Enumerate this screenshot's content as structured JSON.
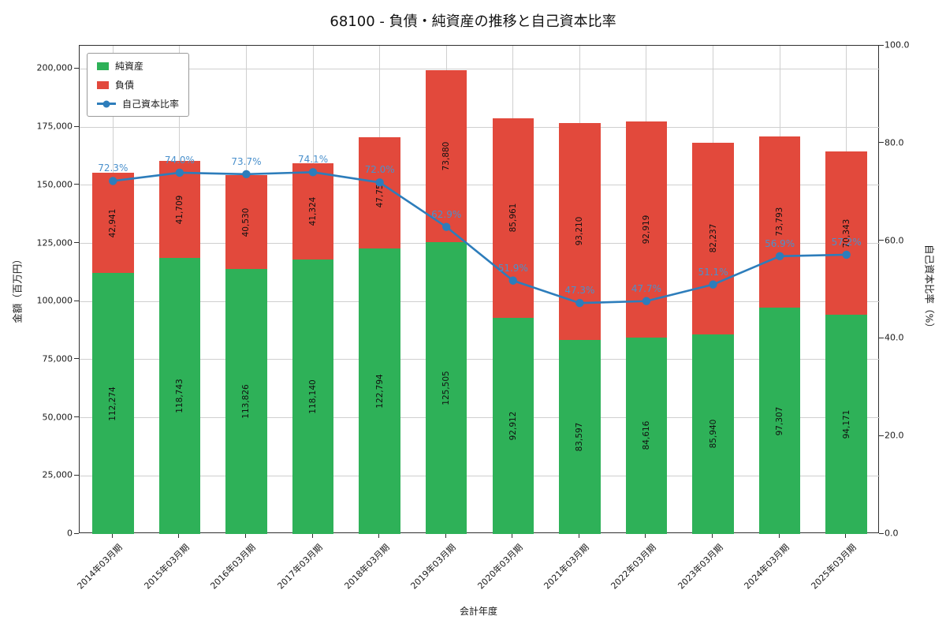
{
  "figure": {
    "title": "68100 - 負債・純資産の推移と自己資本比率"
  },
  "axes": {
    "x_label": "会計年度",
    "y_left_label": "金額（百万円）",
    "y_right_label": "自己資本比率（%）",
    "y_left_tick_values": [
      0,
      25000,
      50000,
      75000,
      100000,
      125000,
      150000,
      175000,
      200000
    ],
    "y_left_tick_labels": [
      "0",
      "25,000",
      "50,000",
      "75,000",
      "100,000",
      "125,000",
      "150,000",
      "175,000",
      "200,000"
    ],
    "y_right_tick_values": [
      0,
      20,
      40,
      60,
      80,
      100
    ],
    "y_right_tick_labels": [
      "0.0",
      "20.0",
      "40.0",
      "60.0",
      "80.0",
      "100.0"
    ]
  },
  "legend": {
    "equity": "純資産",
    "debt": "負債",
    "ratio": "自己資本比率"
  },
  "colors": {
    "equity": "#2eb158",
    "debt": "#e2493c",
    "line": "#2d7dbb",
    "ratio_label": "#4a90cc",
    "grid": "#cfcfcf"
  },
  "chart_data": {
    "type": "bar",
    "variant": "stacked-bars-with-right-axis-line",
    "title": "68100 - 負債・純資産の推移と自己資本比率",
    "xlabel": "会計年度",
    "ylabel_left": "金額（百万円）",
    "ylabel_right": "自己資本比率（%）",
    "categories": [
      "2014年03月期",
      "2015年03月期",
      "2016年03月期",
      "2017年03月期",
      "2018年03月期",
      "2019年03月期",
      "2020年03月期",
      "2021年03月期",
      "2022年03月期",
      "2023年03月期",
      "2024年03月期",
      "2025年03月期"
    ],
    "series": [
      {
        "name": "純資産",
        "type": "bar",
        "axis": "left",
        "values": [
          112274,
          118743,
          113826,
          118140,
          122794,
          125505,
          92912,
          83597,
          84616,
          85940,
          97307,
          94171
        ]
      },
      {
        "name": "負債",
        "type": "bar",
        "axis": "left",
        "values": [
          42941,
          41709,
          40530,
          41324,
          47753,
          73880,
          85961,
          93210,
          92919,
          82237,
          73793,
          70343
        ]
      },
      {
        "name": "自己資本比率",
        "type": "line",
        "axis": "right",
        "values": [
          72.3,
          74.0,
          73.7,
          74.1,
          72.0,
          62.9,
          51.9,
          47.3,
          47.7,
          51.1,
          56.9,
          57.2
        ]
      }
    ],
    "ylim_left": [
      0,
      210000
    ],
    "ylim_right": [
      0,
      100
    ],
    "grid": true,
    "legend_position": "upper left"
  }
}
